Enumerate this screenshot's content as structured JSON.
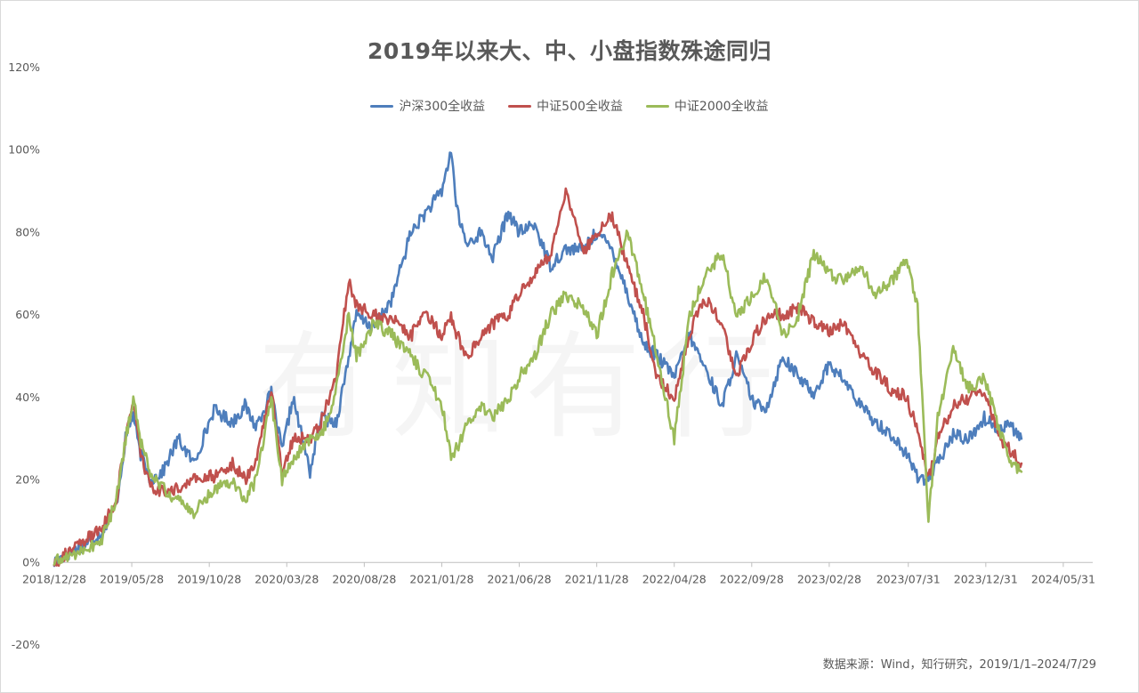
{
  "chart_data": {
    "type": "line",
    "title": "2019年以来大、中、小盘指数殊途同归",
    "source": "数据来源：Wind，知行研究，2019/1/1–2024/7/29",
    "x_tick_labels": [
      "2018/12/28",
      "2019/05/28",
      "2019/10/28",
      "2020/03/28",
      "2020/08/28",
      "2021/01/28",
      "2021/06/28",
      "2021/11/28",
      "2022/04/28",
      "2022/09/28",
      "2023/02/28",
      "2023/07/31",
      "2023/12/31",
      "2024/05/31"
    ],
    "x_range": [
      "2018/12/28",
      "2024/07/29"
    ],
    "y_tick_labels": [
      "120%",
      "100%",
      "80%",
      "60%",
      "40%",
      "20%",
      "0%",
      "-20%"
    ],
    "ylim": [
      -20,
      120
    ],
    "grid": false,
    "legend_position": "top-center",
    "series": [
      {
        "name": "沪深300全收益",
        "color": "#4E7EBC",
        "points": [
          [
            0,
            0
          ],
          [
            3,
            7
          ],
          [
            4,
            14
          ],
          [
            4.6,
            30
          ],
          [
            5.1,
            36
          ],
          [
            5.5,
            27
          ],
          [
            6.2,
            20
          ],
          [
            7,
            22
          ],
          [
            8,
            30
          ],
          [
            9,
            24
          ],
          [
            10.3,
            37
          ],
          [
            11.5,
            34
          ],
          [
            12.3,
            38
          ],
          [
            13,
            33
          ],
          [
            14,
            41
          ],
          [
            14.7,
            27
          ],
          [
            15.4,
            40
          ],
          [
            16.5,
            22
          ],
          [
            17.2,
            35
          ],
          [
            18.2,
            34
          ],
          [
            19.5,
            60
          ],
          [
            20.6,
            57
          ],
          [
            21.8,
            64
          ],
          [
            23,
            80
          ],
          [
            24,
            85
          ],
          [
            25,
            90
          ],
          [
            25.6,
            100
          ],
          [
            26,
            85
          ],
          [
            26.6,
            77
          ],
          [
            27.5,
            80
          ],
          [
            28.3,
            74
          ],
          [
            29.3,
            85
          ],
          [
            30,
            80
          ],
          [
            31,
            82
          ],
          [
            32,
            72
          ],
          [
            33,
            76
          ],
          [
            34.1,
            76
          ],
          [
            35,
            80
          ],
          [
            36,
            76
          ],
          [
            37,
            65
          ],
          [
            38,
            53
          ],
          [
            38.9,
            50
          ],
          [
            40,
            45
          ],
          [
            41,
            55
          ],
          [
            42,
            47
          ],
          [
            43.1,
            38
          ],
          [
            44,
            50
          ],
          [
            45.2,
            38
          ],
          [
            46,
            38
          ],
          [
            47,
            50
          ],
          [
            48,
            45
          ],
          [
            49,
            41
          ],
          [
            50,
            48
          ],
          [
            51,
            44
          ],
          [
            52,
            38
          ],
          [
            53,
            34
          ],
          [
            54,
            31
          ],
          [
            55,
            26
          ],
          [
            55.7,
            21
          ],
          [
            56.4,
            20
          ],
          [
            57,
            24
          ],
          [
            58,
            31
          ],
          [
            59,
            30
          ],
          [
            60,
            35
          ],
          [
            61,
            32
          ],
          [
            61.5,
            34
          ],
          [
            62.4,
            30
          ]
        ]
      },
      {
        "name": "中证500全收益",
        "color": "#C0504D",
        "points": [
          [
            0,
            0
          ],
          [
            3,
            8
          ],
          [
            4,
            15
          ],
          [
            4.6,
            30
          ],
          [
            5.1,
            39
          ],
          [
            5.5,
            28
          ],
          [
            6.2,
            18
          ],
          [
            7,
            17
          ],
          [
            8,
            18
          ],
          [
            9,
            20
          ],
          [
            10.3,
            21
          ],
          [
            11.5,
            24
          ],
          [
            12.3,
            20
          ],
          [
            13,
            25
          ],
          [
            14,
            42
          ],
          [
            14.7,
            22
          ],
          [
            15.4,
            30
          ],
          [
            16.5,
            30
          ],
          [
            17.2,
            34
          ],
          [
            18.2,
            45
          ],
          [
            19,
            69
          ],
          [
            19.5,
            62
          ],
          [
            20.6,
            60
          ],
          [
            21.8,
            59
          ],
          [
            23,
            55
          ],
          [
            24,
            60
          ],
          [
            25,
            55
          ],
          [
            25.6,
            60
          ],
          [
            26,
            55
          ],
          [
            26.6,
            50
          ],
          [
            27.5,
            55
          ],
          [
            28.3,
            58
          ],
          [
            29.3,
            60
          ],
          [
            30,
            65
          ],
          [
            31,
            70
          ],
          [
            32,
            75
          ],
          [
            33,
            90
          ],
          [
            34.1,
            75
          ],
          [
            35,
            80
          ],
          [
            36,
            84
          ],
          [
            37,
            72
          ],
          [
            38,
            60
          ],
          [
            38.9,
            45
          ],
          [
            40,
            40
          ],
          [
            41,
            56
          ],
          [
            42,
            64
          ],
          [
            43.1,
            58
          ],
          [
            44,
            45
          ],
          [
            45.2,
            55
          ],
          [
            46,
            60
          ],
          [
            47,
            60
          ],
          [
            48,
            62
          ],
          [
            49,
            58
          ],
          [
            50,
            56
          ],
          [
            51,
            58
          ],
          [
            52,
            50
          ],
          [
            53,
            46
          ],
          [
            54,
            42
          ],
          [
            55,
            40
          ],
          [
            55.7,
            32
          ],
          [
            56.4,
            20
          ],
          [
            57,
            30
          ],
          [
            58,
            38
          ],
          [
            59,
            40
          ],
          [
            60,
            42
          ],
          [
            61,
            30
          ],
          [
            61.5,
            28
          ],
          [
            62.4,
            24
          ]
        ]
      },
      {
        "name": "中证2000全收益",
        "color": "#9BBB59",
        "points": [
          [
            0,
            0
          ],
          [
            3,
            5
          ],
          [
            4,
            15
          ],
          [
            4.6,
            30
          ],
          [
            5.1,
            40
          ],
          [
            5.5,
            30
          ],
          [
            6.2,
            22
          ],
          [
            7,
            18
          ],
          [
            8,
            15
          ],
          [
            9,
            12
          ],
          [
            10.3,
            18
          ],
          [
            11.5,
            20
          ],
          [
            12.3,
            15
          ],
          [
            13,
            20
          ],
          [
            14,
            40
          ],
          [
            14.7,
            20
          ],
          [
            15.4,
            25
          ],
          [
            16.5,
            30
          ],
          [
            17.2,
            30
          ],
          [
            18.2,
            42
          ],
          [
            19,
            60
          ],
          [
            19.5,
            50
          ],
          [
            20.6,
            58
          ],
          [
            21.8,
            55
          ],
          [
            23,
            50
          ],
          [
            24,
            45
          ],
          [
            25,
            38
          ],
          [
            25.6,
            26
          ],
          [
            26,
            28
          ],
          [
            26.6,
            33
          ],
          [
            27.5,
            38
          ],
          [
            28.3,
            35
          ],
          [
            29.3,
            40
          ],
          [
            30,
            45
          ],
          [
            31,
            50
          ],
          [
            32,
            60
          ],
          [
            33,
            65
          ],
          [
            34.1,
            62
          ],
          [
            35,
            55
          ],
          [
            36,
            70
          ],
          [
            37,
            80
          ],
          [
            38,
            65
          ],
          [
            38.9,
            50
          ],
          [
            40,
            30
          ],
          [
            41,
            60
          ],
          [
            42,
            70
          ],
          [
            43.1,
            75
          ],
          [
            44,
            60
          ],
          [
            45.2,
            65
          ],
          [
            46,
            70
          ],
          [
            47,
            55
          ],
          [
            48,
            60
          ],
          [
            49,
            75
          ],
          [
            50,
            70
          ],
          [
            51,
            68
          ],
          [
            52,
            72
          ],
          [
            53,
            65
          ],
          [
            54,
            68
          ],
          [
            55,
            74
          ],
          [
            55.7,
            62
          ],
          [
            56.4,
            10
          ],
          [
            57,
            35
          ],
          [
            58,
            52
          ],
          [
            59,
            42
          ],
          [
            60,
            45
          ],
          [
            61,
            32
          ],
          [
            61.5,
            26
          ],
          [
            62.4,
            22
          ]
        ]
      }
    ]
  }
}
